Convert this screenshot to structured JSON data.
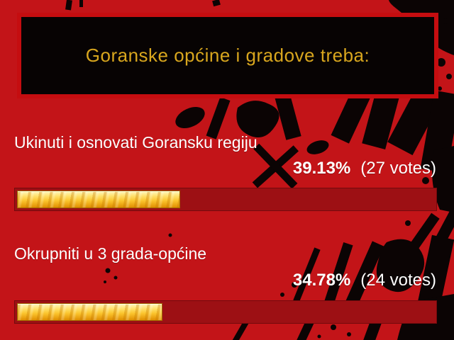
{
  "theme": {
    "bg": "#c31418",
    "box_bg": "#070303",
    "title_color": "#d8a61e",
    "title_border": "#c50d10",
    "text": "#ffffff",
    "track": "#9d1014",
    "gold_hi": "#fff7c0",
    "gold_mid": "#ffe06a",
    "gold_deep": "#fbc52e",
    "gold_dark": "#e08e00",
    "splatter": "#0b0404"
  },
  "poll": {
    "question": "Goranske općine i gradove treba:",
    "options": [
      {
        "label": "Ukinuti i osnovati Goransku regiju",
        "percent": "39.13%",
        "votes": "(27 votes)",
        "percent_value": 39.13,
        "votes_count": 27
      },
      {
        "label": "Okrupniti u 3 grada-općine",
        "percent": "34.78%",
        "votes": "(24 votes)",
        "percent_value": 34.78,
        "votes_count": 24
      }
    ]
  }
}
